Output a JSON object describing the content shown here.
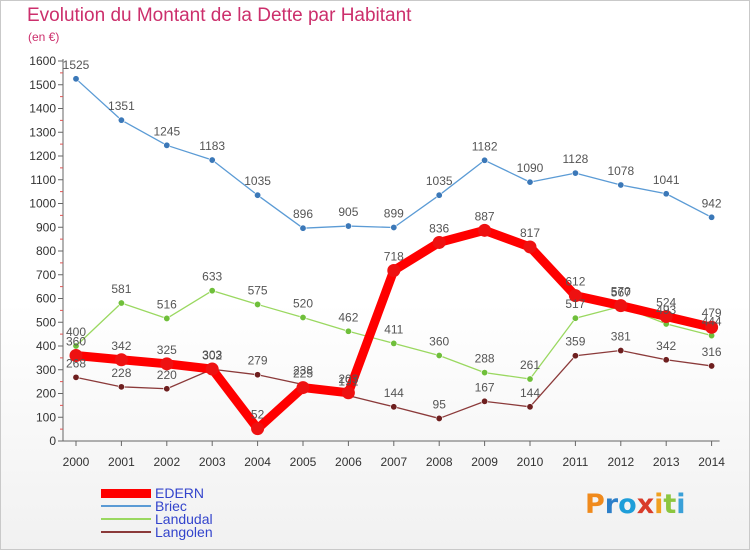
{
  "title": "Evolution du Montant de la Dette par Habitant",
  "subtitle": "(en €)",
  "brand": {
    "letters": [
      "P",
      "r",
      "o",
      "x",
      "i",
      "t",
      "i"
    ],
    "colors": [
      "#f08a1c",
      "#2c7fc9",
      "#1f9ed9",
      "#d93c2a",
      "#f0a020",
      "#8cc63f",
      "#3aa0d8"
    ]
  },
  "colors": {
    "axis": "#666666",
    "tick_text": "#333333",
    "label_text": "#555555",
    "minor_tick": "#e05555"
  },
  "chart_data": {
    "type": "line",
    "x": [
      "2000",
      "2001",
      "2002",
      "2003",
      "2004",
      "2005",
      "2006",
      "2007",
      "2008",
      "2009",
      "2010",
      "2011",
      "2012",
      "2013",
      "2014"
    ],
    "ylim": [
      0,
      1600
    ],
    "yticks": [
      "0",
      "100",
      "200",
      "300",
      "400",
      "500",
      "600",
      "700",
      "800",
      "900",
      "1000",
      "1100",
      "1200",
      "1300",
      "1400",
      "1500",
      "1600"
    ],
    "grid": false,
    "legend_position": "bottom-left",
    "series": [
      {
        "name": "Briec",
        "color": "#5b9bd5",
        "marker": "#3b78b8",
        "values": [
          1525,
          1351,
          1245,
          1183,
          1035,
          896,
          905,
          899,
          1035,
          1182,
          1090,
          1128,
          1078,
          1041,
          942
        ],
        "labels": [
          "1525",
          "1351",
          "1245",
          "1183",
          "1035",
          "896",
          "905",
          "899",
          "1035",
          "1182",
          "1090",
          "1128",
          "1078",
          "1041",
          "942"
        ]
      },
      {
        "name": "Landudal",
        "color": "#9ad860",
        "marker": "#6fbf3a",
        "values": [
          400,
          581,
          516,
          633,
          575,
          520,
          462,
          411,
          360,
          288,
          261,
          517,
          567,
          493,
          444
        ],
        "labels": [
          "400",
          "581",
          "516",
          "633",
          "575",
          "520",
          "462",
          "411",
          "360",
          "288",
          "261",
          "517",
          "567",
          "493",
          "444"
        ]
      },
      {
        "name": "Langolen",
        "color": "#8b3a3a",
        "marker": "#6e1f1f",
        "values": [
          268,
          228,
          220,
          302,
          279,
          238,
          191,
          144,
          95,
          167,
          144,
          359,
          381,
          342,
          316
        ],
        "labels": [
          "268",
          "228",
          "220",
          "302",
          "279",
          "238",
          "191",
          "144",
          "95",
          "167",
          "144",
          "359",
          "381",
          "342",
          "316"
        ]
      },
      {
        "name": "EDERN",
        "color": "#ff0000",
        "marker": "#ee1111",
        "thick": true,
        "values": [
          360,
          342,
          325,
          303,
          52,
          225,
          203,
          718,
          836,
          887,
          817,
          612,
          570,
          524,
          479
        ],
        "labels": [
          "360",
          "342",
          "325",
          "303",
          "52",
          "225",
          "203",
          "718",
          "836",
          "887",
          "817",
          "612",
          "570",
          "524",
          "479"
        ]
      }
    ],
    "legend": [
      {
        "name": "EDERN",
        "color": "#ff0000",
        "text_color": "#3344cc",
        "thick": true
      },
      {
        "name": "Briec",
        "color": "#5b9bd5",
        "text_color": "#3344cc",
        "thick": false
      },
      {
        "name": "Landudal",
        "color": "#9ad860",
        "text_color": "#3344cc",
        "thick": false
      },
      {
        "name": "Langolen",
        "color": "#8b3a3a",
        "text_color": "#3344cc",
        "thick": false
      }
    ]
  }
}
